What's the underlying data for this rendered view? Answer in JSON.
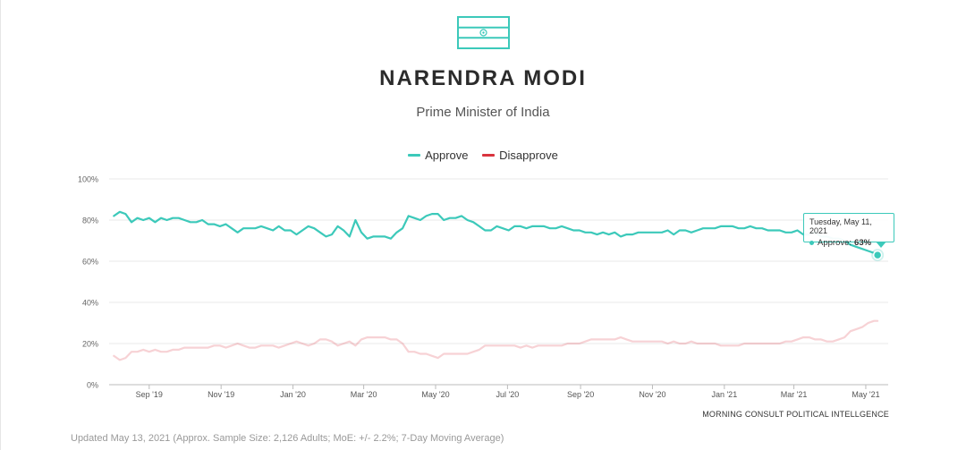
{
  "header": {
    "title": "NARENDRA MODI",
    "subtitle": "Prime Minister of India"
  },
  "legend": [
    {
      "label": "Approve",
      "color": "#3cc9ba"
    },
    {
      "label": "Disapprove",
      "color": "#d9343e"
    }
  ],
  "tooltip": {
    "date": "Tuesday, May 11, 2021",
    "series": "Approve:",
    "value": "63%"
  },
  "source": "MORNING CONSULT POLITICAL INTELLGENCE",
  "footer": "Updated May 13, 2021 (Approx. Sample Size: 2,126 Adults; MoE: +/- 2.2%; 7-Day Moving Average)",
  "icons": {
    "flag": "india-flag-icon"
  },
  "chart_data": {
    "type": "line",
    "title": "NARENDRA MODI",
    "subtitle": "Prime Minister of India",
    "xlabel": "",
    "ylabel": "",
    "ylim": [
      0,
      100
    ],
    "y_ticks": [
      "0%",
      "20%",
      "40%",
      "60%",
      "80%",
      "100%"
    ],
    "x_ticks": [
      {
        "label": "Sep '19",
        "date": "2019-09-01"
      },
      {
        "label": "Nov '19",
        "date": "2019-11-01"
      },
      {
        "label": "Jan '20",
        "date": "2020-01-01"
      },
      {
        "label": "Mar '20",
        "date": "2020-03-01"
      },
      {
        "label": "May '20",
        "date": "2020-05-01"
      },
      {
        "label": "Jul '20",
        "date": "2020-07-01"
      },
      {
        "label": "Sep '20",
        "date": "2020-09-01"
      },
      {
        "label": "Nov '20",
        "date": "2020-11-01"
      },
      {
        "label": "Jan '21",
        "date": "2021-01-01"
      },
      {
        "label": "Mar '21",
        "date": "2021-03-01"
      },
      {
        "label": "May '21",
        "date": "2021-05-01"
      }
    ],
    "grid": true,
    "legend_position": "top-center",
    "series": [
      {
        "name": "Approve",
        "color": "#3cc9ba",
        "points": [
          [
            "2019-08-02",
            82
          ],
          [
            "2019-08-07",
            84
          ],
          [
            "2019-08-12",
            83
          ],
          [
            "2019-08-17",
            79
          ],
          [
            "2019-08-22",
            81
          ],
          [
            "2019-08-27",
            80
          ],
          [
            "2019-09-01",
            81
          ],
          [
            "2019-09-06",
            79
          ],
          [
            "2019-09-11",
            81
          ],
          [
            "2019-09-16",
            80
          ],
          [
            "2019-09-21",
            81
          ],
          [
            "2019-09-26",
            81
          ],
          [
            "2019-10-01",
            80
          ],
          [
            "2019-10-06",
            79
          ],
          [
            "2019-10-11",
            79
          ],
          [
            "2019-10-16",
            80
          ],
          [
            "2019-10-21",
            78
          ],
          [
            "2019-10-26",
            78
          ],
          [
            "2019-10-31",
            77
          ],
          [
            "2019-11-05",
            78
          ],
          [
            "2019-11-10",
            76
          ],
          [
            "2019-11-15",
            74
          ],
          [
            "2019-11-20",
            76
          ],
          [
            "2019-11-25",
            76
          ],
          [
            "2019-11-30",
            76
          ],
          [
            "2019-12-05",
            77
          ],
          [
            "2019-12-10",
            76
          ],
          [
            "2019-12-15",
            75
          ],
          [
            "2019-12-20",
            77
          ],
          [
            "2019-12-25",
            75
          ],
          [
            "2019-12-30",
            75
          ],
          [
            "2020-01-04",
            73
          ],
          [
            "2020-01-09",
            75
          ],
          [
            "2020-01-14",
            77
          ],
          [
            "2020-01-19",
            76
          ],
          [
            "2020-01-24",
            74
          ],
          [
            "2020-01-29",
            72
          ],
          [
            "2020-02-03",
            73
          ],
          [
            "2020-02-08",
            77
          ],
          [
            "2020-02-13",
            75
          ],
          [
            "2020-02-18",
            72
          ],
          [
            "2020-02-23",
            80
          ],
          [
            "2020-02-28",
            74
          ],
          [
            "2020-03-04",
            71
          ],
          [
            "2020-03-09",
            72
          ],
          [
            "2020-03-14",
            72
          ],
          [
            "2020-03-19",
            72
          ],
          [
            "2020-03-24",
            71
          ],
          [
            "2020-03-29",
            74
          ],
          [
            "2020-04-03",
            76
          ],
          [
            "2020-04-08",
            82
          ],
          [
            "2020-04-13",
            81
          ],
          [
            "2020-04-18",
            80
          ],
          [
            "2020-04-23",
            82
          ],
          [
            "2020-04-28",
            83
          ],
          [
            "2020-05-03",
            83
          ],
          [
            "2020-05-08",
            80
          ],
          [
            "2020-05-13",
            81
          ],
          [
            "2020-05-18",
            81
          ],
          [
            "2020-05-23",
            82
          ],
          [
            "2020-05-28",
            80
          ],
          [
            "2020-06-02",
            79
          ],
          [
            "2020-06-07",
            77
          ],
          [
            "2020-06-12",
            75
          ],
          [
            "2020-06-17",
            75
          ],
          [
            "2020-06-22",
            77
          ],
          [
            "2020-06-27",
            76
          ],
          [
            "2020-07-02",
            75
          ],
          [
            "2020-07-07",
            77
          ],
          [
            "2020-07-12",
            77
          ],
          [
            "2020-07-17",
            76
          ],
          [
            "2020-07-22",
            77
          ],
          [
            "2020-07-27",
            77
          ],
          [
            "2020-08-01",
            77
          ],
          [
            "2020-08-06",
            76
          ],
          [
            "2020-08-11",
            76
          ],
          [
            "2020-08-16",
            77
          ],
          [
            "2020-08-21",
            76
          ],
          [
            "2020-08-26",
            75
          ],
          [
            "2020-08-31",
            75
          ],
          [
            "2020-09-05",
            74
          ],
          [
            "2020-09-10",
            74
          ],
          [
            "2020-09-15",
            73
          ],
          [
            "2020-09-20",
            74
          ],
          [
            "2020-09-25",
            73
          ],
          [
            "2020-09-30",
            74
          ],
          [
            "2020-10-05",
            72
          ],
          [
            "2020-10-10",
            73
          ],
          [
            "2020-10-15",
            73
          ],
          [
            "2020-10-20",
            74
          ],
          [
            "2020-10-25",
            74
          ],
          [
            "2020-10-30",
            74
          ],
          [
            "2020-11-04",
            74
          ],
          [
            "2020-11-09",
            74
          ],
          [
            "2020-11-14",
            75
          ],
          [
            "2020-11-19",
            73
          ],
          [
            "2020-11-24",
            75
          ],
          [
            "2020-11-29",
            75
          ],
          [
            "2020-12-04",
            74
          ],
          [
            "2020-12-09",
            75
          ],
          [
            "2020-12-14",
            76
          ],
          [
            "2020-12-19",
            76
          ],
          [
            "2020-12-24",
            76
          ],
          [
            "2020-12-29",
            77
          ],
          [
            "2021-01-03",
            77
          ],
          [
            "2021-01-08",
            77
          ],
          [
            "2021-01-13",
            76
          ],
          [
            "2021-01-18",
            76
          ],
          [
            "2021-01-23",
            77
          ],
          [
            "2021-01-28",
            76
          ],
          [
            "2021-02-02",
            76
          ],
          [
            "2021-02-07",
            75
          ],
          [
            "2021-02-12",
            75
          ],
          [
            "2021-02-17",
            75
          ],
          [
            "2021-02-22",
            74
          ],
          [
            "2021-02-27",
            74
          ],
          [
            "2021-03-04",
            75
          ],
          [
            "2021-03-09",
            73
          ],
          [
            "2021-03-14",
            73
          ],
          [
            "2021-03-19",
            74
          ],
          [
            "2021-03-24",
            72
          ],
          [
            "2021-03-29",
            72
          ],
          [
            "2021-04-03",
            71
          ],
          [
            "2021-04-08",
            71
          ],
          [
            "2021-04-13",
            70
          ],
          [
            "2021-04-18",
            68
          ],
          [
            "2021-04-23",
            67
          ],
          [
            "2021-04-28",
            66
          ],
          [
            "2021-05-03",
            65
          ],
          [
            "2021-05-08",
            64
          ],
          [
            "2021-05-11",
            63
          ]
        ]
      },
      {
        "name": "Disapprove",
        "color": "#d9343e",
        "faded": true,
        "points": [
          [
            "2019-08-02",
            14
          ],
          [
            "2019-08-07",
            12
          ],
          [
            "2019-08-12",
            13
          ],
          [
            "2019-08-17",
            16
          ],
          [
            "2019-08-22",
            16
          ],
          [
            "2019-08-27",
            17
          ],
          [
            "2019-09-01",
            16
          ],
          [
            "2019-09-06",
            17
          ],
          [
            "2019-09-11",
            16
          ],
          [
            "2019-09-16",
            16
          ],
          [
            "2019-09-21",
            17
          ],
          [
            "2019-09-26",
            17
          ],
          [
            "2019-10-01",
            18
          ],
          [
            "2019-10-06",
            18
          ],
          [
            "2019-10-11",
            18
          ],
          [
            "2019-10-16",
            18
          ],
          [
            "2019-10-21",
            18
          ],
          [
            "2019-10-26",
            19
          ],
          [
            "2019-10-31",
            19
          ],
          [
            "2019-11-05",
            18
          ],
          [
            "2019-11-10",
            19
          ],
          [
            "2019-11-15",
            20
          ],
          [
            "2019-11-20",
            19
          ],
          [
            "2019-11-25",
            18
          ],
          [
            "2019-11-30",
            18
          ],
          [
            "2019-12-05",
            19
          ],
          [
            "2019-12-10",
            19
          ],
          [
            "2019-12-15",
            19
          ],
          [
            "2019-12-20",
            18
          ],
          [
            "2019-12-25",
            19
          ],
          [
            "2019-12-30",
            20
          ],
          [
            "2020-01-04",
            21
          ],
          [
            "2020-01-09",
            20
          ],
          [
            "2020-01-14",
            19
          ],
          [
            "2020-01-19",
            20
          ],
          [
            "2020-01-24",
            22
          ],
          [
            "2020-01-29",
            22
          ],
          [
            "2020-02-03",
            21
          ],
          [
            "2020-02-08",
            19
          ],
          [
            "2020-02-13",
            20
          ],
          [
            "2020-02-18",
            21
          ],
          [
            "2020-02-23",
            19
          ],
          [
            "2020-02-28",
            22
          ],
          [
            "2020-03-04",
            23
          ],
          [
            "2020-03-09",
            23
          ],
          [
            "2020-03-14",
            23
          ],
          [
            "2020-03-19",
            23
          ],
          [
            "2020-03-24",
            22
          ],
          [
            "2020-03-29",
            22
          ],
          [
            "2020-04-03",
            20
          ],
          [
            "2020-04-08",
            16
          ],
          [
            "2020-04-13",
            16
          ],
          [
            "2020-04-18",
            15
          ],
          [
            "2020-04-23",
            15
          ],
          [
            "2020-04-28",
            14
          ],
          [
            "2020-05-03",
            13
          ],
          [
            "2020-05-08",
            15
          ],
          [
            "2020-05-13",
            15
          ],
          [
            "2020-05-18",
            15
          ],
          [
            "2020-05-23",
            15
          ],
          [
            "2020-05-28",
            15
          ],
          [
            "2020-06-02",
            16
          ],
          [
            "2020-06-07",
            17
          ],
          [
            "2020-06-12",
            19
          ],
          [
            "2020-06-17",
            19
          ],
          [
            "2020-06-22",
            19
          ],
          [
            "2020-06-27",
            19
          ],
          [
            "2020-07-02",
            19
          ],
          [
            "2020-07-07",
            19
          ],
          [
            "2020-07-12",
            18
          ],
          [
            "2020-07-17",
            19
          ],
          [
            "2020-07-22",
            18
          ],
          [
            "2020-07-27",
            19
          ],
          [
            "2020-08-01",
            19
          ],
          [
            "2020-08-06",
            19
          ],
          [
            "2020-08-11",
            19
          ],
          [
            "2020-08-16",
            19
          ],
          [
            "2020-08-21",
            20
          ],
          [
            "2020-08-26",
            20
          ],
          [
            "2020-08-31",
            20
          ],
          [
            "2020-09-05",
            21
          ],
          [
            "2020-09-10",
            22
          ],
          [
            "2020-09-15",
            22
          ],
          [
            "2020-09-20",
            22
          ],
          [
            "2020-09-25",
            22
          ],
          [
            "2020-09-30",
            22
          ],
          [
            "2020-10-05",
            23
          ],
          [
            "2020-10-10",
            22
          ],
          [
            "2020-10-15",
            21
          ],
          [
            "2020-10-20",
            21
          ],
          [
            "2020-10-25",
            21
          ],
          [
            "2020-10-30",
            21
          ],
          [
            "2020-11-04",
            21
          ],
          [
            "2020-11-09",
            21
          ],
          [
            "2020-11-14",
            20
          ],
          [
            "2020-11-19",
            21
          ],
          [
            "2020-11-24",
            20
          ],
          [
            "2020-11-29",
            20
          ],
          [
            "2020-12-04",
            21
          ],
          [
            "2020-12-09",
            20
          ],
          [
            "2020-12-14",
            20
          ],
          [
            "2020-12-19",
            20
          ],
          [
            "2020-12-24",
            20
          ],
          [
            "2020-12-29",
            19
          ],
          [
            "2021-01-03",
            19
          ],
          [
            "2021-01-08",
            19
          ],
          [
            "2021-01-13",
            19
          ],
          [
            "2021-01-18",
            20
          ],
          [
            "2021-01-23",
            20
          ],
          [
            "2021-01-28",
            20
          ],
          [
            "2021-02-02",
            20
          ],
          [
            "2021-02-07",
            20
          ],
          [
            "2021-02-12",
            20
          ],
          [
            "2021-02-17",
            20
          ],
          [
            "2021-02-22",
            21
          ],
          [
            "2021-02-27",
            21
          ],
          [
            "2021-03-04",
            22
          ],
          [
            "2021-03-09",
            23
          ],
          [
            "2021-03-14",
            23
          ],
          [
            "2021-03-19",
            22
          ],
          [
            "2021-03-24",
            22
          ],
          [
            "2021-03-29",
            21
          ],
          [
            "2021-04-03",
            21
          ],
          [
            "2021-04-08",
            22
          ],
          [
            "2021-04-13",
            23
          ],
          [
            "2021-04-18",
            26
          ],
          [
            "2021-04-23",
            27
          ],
          [
            "2021-04-28",
            28
          ],
          [
            "2021-05-03",
            30
          ],
          [
            "2021-05-08",
            31
          ],
          [
            "2021-05-11",
            31
          ]
        ]
      }
    ],
    "highlight": {
      "series": "Approve",
      "date": "2021-05-11",
      "value": 63
    }
  }
}
